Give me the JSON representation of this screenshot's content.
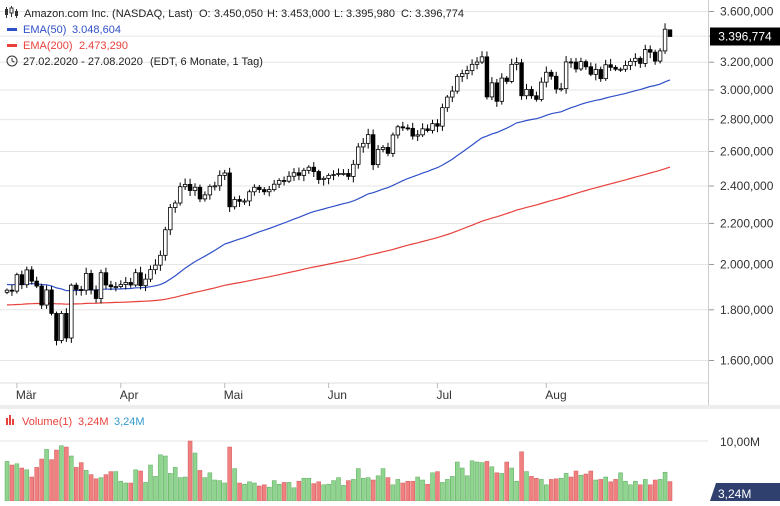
{
  "header": {
    "title_line": "Amazon.com Inc. (NASDAQ, Last)",
    "ohlc": {
      "o_label": "O:",
      "o": "3.450,050",
      "h_label": "H:",
      "h": "3.453,000",
      "l_label": "L:",
      "l": "3.395,980",
      "c_label": "C:",
      "c": "3.396,774"
    },
    "ema50_label": "EMA(50)",
    "ema50_value": "3.048,604",
    "ema200_label": "EMA(200)",
    "ema200_value": "2.473,290",
    "range_text": "27.02.2020 - 27.08.2020",
    "range_meta": "(EDT, 6 Monate, 1 Tag)",
    "clock_icon": "clock-icon",
    "chart_type_icon": "candlestick-icon"
  },
  "price_axis": {
    "labels": [
      "3.600,000",
      "3.400,000",
      "3.200,000",
      "3.000,000",
      "2.800,000",
      "2.600,000",
      "2.400,000",
      "2.200,000",
      "2.000,000",
      "1.800,000",
      "1.600,000"
    ],
    "last_price_tag": "3.396,774"
  },
  "x_axis": {
    "labels": [
      "Mär",
      "Apr",
      "Mai",
      "Jun",
      "Jul",
      "Aug"
    ]
  },
  "volume": {
    "label": "Volume(1)",
    "value_red": "3,24M",
    "value_blue": "3,24M",
    "axis_label": "10,00M",
    "last_tag": "3,24M"
  },
  "colors": {
    "ema50": "#2f50c8",
    "ema200": "#e8413c",
    "volume_up": "#8fd48f",
    "volume_down": "#f08080",
    "candle": "#000000",
    "last_tag_bg": "#000000",
    "grid": "#e6e6e6"
  },
  "chart_data": [
    {
      "type": "candlestick",
      "title": "Amazon.com Inc. (NASDAQ, Last)",
      "date_range": [
        "2020-02-27",
        "2020-08-27"
      ],
      "scale": "log",
      "ylim": [
        1500,
        3700
      ],
      "x_tick_labels": [
        "Mär",
        "Apr",
        "Mai",
        "Jun",
        "Jul",
        "Aug"
      ],
      "y_tick_labels": [
        "1.600,000",
        "1.800,000",
        "2.000,000",
        "2.200,000",
        "2.400,000",
        "2.600,000",
        "2.800,000",
        "3.000,000",
        "3.200,000",
        "3.400,000",
        "3.600,000"
      ],
      "grid": true,
      "legend": "top-left",
      "last": {
        "open": 3450.05,
        "high": 3453.0,
        "low": 3395.98,
        "close": 3396.774
      },
      "close": [
        1884,
        1880,
        1953,
        1908,
        1975,
        1924,
        1902,
        1820,
        1885,
        1785,
        1676,
        1785,
        1686,
        1906,
        1887,
        1884,
        1959,
        1885,
        1848,
        1962,
        1907,
        1899,
        1900,
        1909,
        1918,
        1907,
        1962,
        1904,
        1933,
        1976,
        1997,
        2043,
        2168,
        2283,
        2307,
        2396,
        2409,
        2375,
        2393,
        2329,
        2351,
        2398,
        2401,
        2460,
        2474,
        2287,
        2326,
        2316,
        2318,
        2368,
        2393,
        2380,
        2368,
        2380,
        2410,
        2431,
        2427,
        2455,
        2475,
        2460,
        2489,
        2507,
        2482,
        2436,
        2443,
        2460,
        2465,
        2471,
        2471,
        2454,
        2524,
        2628,
        2650,
        2704,
        2522,
        2613,
        2625,
        2589,
        2702,
        2754,
        2747,
        2744,
        2695,
        2703,
        2741,
        2730,
        2774,
        2758,
        2879,
        2951,
        2992,
        3096,
        3116,
        3138,
        3184,
        3201,
        3240,
        2952,
        3050,
        2922,
        3084,
        3060,
        3184,
        3196,
        2960,
        3004,
        2960,
        2935,
        3055,
        3126,
        3097,
        3006,
        3009,
        3202,
        3201,
        3150,
        3204,
        3166,
        3111,
        3146,
        3080,
        3181,
        3162,
        3148,
        3148,
        3176,
        3206,
        3229,
        3191,
        3295,
        3275,
        3208,
        3285,
        3455,
        3396.774
      ],
      "volume": [
        6.6,
        6.0,
        6.2,
        5.5,
        5.2,
        4.0,
        5.6,
        7.0,
        8.6,
        6.9,
        8.5,
        9.2,
        9.0,
        7.5,
        5.6,
        6.4,
        5.1,
        4.4,
        3.7,
        3.9,
        4.4,
        4.9,
        4.9,
        3.3,
        3.0,
        3.0,
        5.2,
        5.0,
        3.1,
        6.0,
        4.1,
        7.7,
        7.5,
        4.6,
        5.6,
        3.9,
        4.0,
        10.0,
        8.0,
        5.1,
        3.9,
        4.7,
        3.5,
        3.4,
        3.0,
        9.0,
        5.4,
        3.0,
        2.8,
        3.2,
        3.0,
        2.5,
        2.7,
        2.3,
        3.4,
        2.8,
        3.1,
        3.1,
        2.2,
        3.3,
        3.8,
        3.8,
        2.9,
        3.2,
        2.7,
        2.8,
        3.4,
        3.9,
        2.6,
        3.4,
        3.6,
        5.4,
        3.8,
        3.9,
        3.5,
        4.2,
        5.4,
        3.9,
        2.7,
        3.6,
        3.0,
        3.3,
        3.3,
        4.0,
        3.5,
        2.8,
        4.7,
        4.9,
        3.1,
        3.6,
        4.1,
        6.5,
        5.5,
        4.2,
        6.7,
        6.5,
        6.4,
        6.6,
        5.7,
        4.7,
        4.6,
        6.5,
        5.5,
        3.3,
        8.2,
        4.9,
        4.1,
        3.8,
        3.6,
        2.7,
        3.6,
        3.7,
        3.8,
        4.6,
        4.0,
        5.0,
        4.3,
        4.5,
        5.0,
        3.5,
        3.6,
        4.0,
        3.2,
        3.6,
        4.7,
        3.3,
        2.7,
        3.3,
        2.7,
        3.6,
        2.7,
        3.5,
        3.6,
        4.8,
        3.24
      ]
    }
  ]
}
